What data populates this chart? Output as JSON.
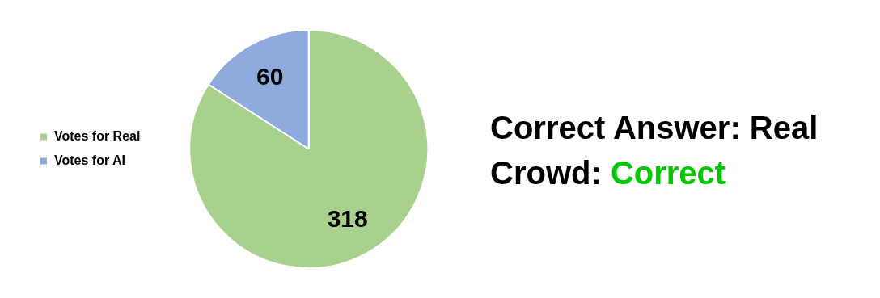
{
  "chart_data": {
    "type": "pie",
    "categories": [
      "Votes for Real",
      "Votes for AI"
    ],
    "values": [
      318,
      60
    ],
    "colors": [
      "#a9d18e",
      "#8faadc"
    ],
    "data_labels": true,
    "legend": "left",
    "annotations": [
      "Correct Answer: Real",
      "Crowd:",
      "Correct"
    ]
  }
}
